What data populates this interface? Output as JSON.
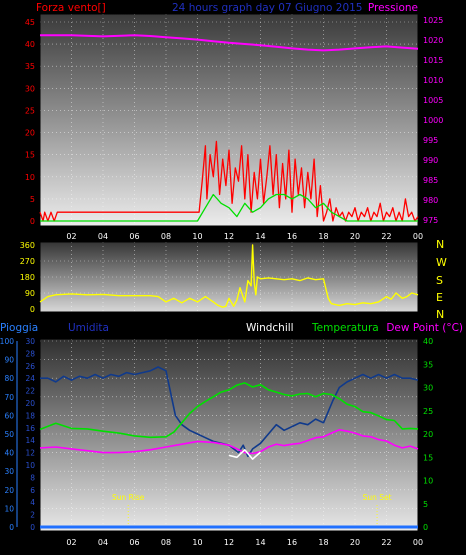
{
  "colors": {
    "red": "#ff0000",
    "green": "#00e000",
    "magenta": "#ff00ff",
    "yellow": "#ffff00",
    "blue": "#2070ff",
    "navy": "#2030a0",
    "white": "#ffffff",
    "darkblue_line": "#103a8c"
  },
  "chart_data": [
    {
      "type": "line",
      "title": "24 hours graph day  07 Giugno 2015",
      "left_label": "Forza vento[]",
      "right_label": "Pressione",
      "x_ticks": [
        "02",
        "04",
        "06",
        "08",
        "10",
        "12",
        "14",
        "16",
        "18",
        "20",
        "22",
        "00"
      ],
      "left_ticks": [
        0,
        5,
        10,
        15,
        20,
        25,
        30,
        35,
        40,
        45
      ],
      "right_ticks": [
        975,
        980,
        985,
        990,
        995,
        1000,
        1005,
        1010,
        1015,
        1020,
        1025
      ],
      "xlim": [
        0,
        24
      ],
      "ylim_left": [
        0,
        45
      ],
      "ylim_right": [
        973.5,
        1026.5
      ],
      "series": [
        {
          "axis": "right",
          "color": "magenta",
          "x": [
            0,
            2,
            4,
            6,
            7,
            8,
            9,
            10,
            11,
            12,
            13,
            14,
            15,
            16,
            17,
            18,
            19,
            20,
            21,
            22,
            23,
            24
          ],
          "y": [
            1021.2,
            1021.2,
            1020.9,
            1021.2,
            1021.0,
            1020.7,
            1020.4,
            1020.1,
            1019.7,
            1019.3,
            1019.0,
            1018.7,
            1018.3,
            1017.9,
            1017.6,
            1017.4,
            1017.6,
            1017.9,
            1018.2,
            1018.4,
            1018.1,
            1017.8
          ]
        },
        {
          "axis": "left",
          "color": "red",
          "x": [
            0,
            0.2,
            0.3,
            0.5,
            0.7,
            0.9,
            1.1,
            10.1,
            10.3,
            10.5,
            10.6,
            10.8,
            11.0,
            11.2,
            11.4,
            11.6,
            11.8,
            12.0,
            12.2,
            12.4,
            12.6,
            12.8,
            13.0,
            13.2,
            13.4,
            13.6,
            13.8,
            14.0,
            14.2,
            14.4,
            14.6,
            14.8,
            15.0,
            15.2,
            15.4,
            15.6,
            15.8,
            16.0,
            16.2,
            16.4,
            16.6,
            16.8,
            17.0,
            17.2,
            17.4,
            17.6,
            17.8,
            18.0,
            18.2,
            18.4,
            18.6,
            18.8,
            19.0,
            19.2,
            19.4,
            19.6,
            19.8,
            20.0,
            20.2,
            20.4,
            20.6,
            20.8,
            21.0,
            21.2,
            21.4,
            21.6,
            21.8,
            22.0,
            22.2,
            22.4,
            22.6,
            22.8,
            23.0,
            23.2,
            23.4,
            23.6,
            23.8,
            24.0
          ],
          "y": [
            2,
            0,
            2,
            0,
            2,
            0,
            2,
            2,
            9,
            17,
            5,
            15,
            10,
            18,
            6,
            14,
            8,
            16,
            4,
            12,
            9,
            17,
            5,
            15,
            2,
            11,
            5,
            14,
            4,
            10,
            17,
            6,
            15,
            3,
            13,
            5,
            16,
            2,
            14,
            6,
            12,
            3,
            11,
            5,
            14,
            1,
            8,
            0,
            2,
            5,
            0,
            3,
            1,
            2,
            0,
            2,
            1,
            3,
            0,
            2,
            1,
            3,
            0,
            2,
            1,
            4,
            0,
            2,
            1,
            3,
            0,
            2,
            0,
            5,
            1,
            2,
            0,
            1
          ]
        },
        {
          "axis": "left",
          "color": "green",
          "x": [
            0,
            10.0,
            10.5,
            11.0,
            11.5,
            12.0,
            12.5,
            13.0,
            13.5,
            14.0,
            14.5,
            15.0,
            15.5,
            16.0,
            16.5,
            17.0,
            17.5,
            18.0,
            18.5,
            19.0,
            19.5,
            20.0,
            24.0
          ],
          "y": [
            0,
            0,
            3,
            6,
            4,
            3,
            1,
            4,
            2,
            3,
            5,
            6,
            6,
            5,
            6,
            5,
            3,
            4,
            2,
            1,
            0,
            0,
            0
          ]
        }
      ]
    },
    {
      "type": "line",
      "left_ticks": [
        0,
        90,
        180,
        270,
        360
      ],
      "compass_labels": [
        "N",
        "W",
        "S",
        "E",
        "N"
      ],
      "xlim": [
        0,
        24
      ],
      "ylim": [
        0,
        360
      ],
      "series": [
        {
          "color": "yellow",
          "x": [
            0,
            0.5,
            1.0,
            2.0,
            3.0,
            4.0,
            5.0,
            6.0,
            7.0,
            7.5,
            8.0,
            8.5,
            9.0,
            9.5,
            10.0,
            10.5,
            11.0,
            11.3,
            11.6,
            11.8,
            12.0,
            12.3,
            12.5,
            12.7,
            13.0,
            13.2,
            13.4,
            13.5,
            13.6,
            13.7,
            13.8,
            14.0,
            14.5,
            15.0,
            15.5,
            16.0,
            16.5,
            17.0,
            17.5,
            18.0,
            18.3,
            18.5,
            19.0,
            19.5,
            20.0,
            20.5,
            21.0,
            21.5,
            22.0,
            22.3,
            22.6,
            23.0,
            23.3,
            23.6,
            24.0
          ],
          "y": [
            40,
            70,
            80,
            85,
            80,
            82,
            75,
            75,
            75,
            70,
            40,
            60,
            35,
            60,
            40,
            70,
            40,
            20,
            10,
            15,
            60,
            15,
            50,
            120,
            40,
            160,
            130,
            360,
            150,
            80,
            180,
            170,
            175,
            170,
            165,
            170,
            160,
            175,
            165,
            170,
            60,
            30,
            20,
            30,
            25,
            35,
            30,
            40,
            70,
            55,
            90,
            60,
            70,
            90,
            80
          ]
        }
      ]
    },
    {
      "type": "line",
      "left1_label": "Pioggia",
      "left2_label": "Umidita",
      "mid_label": "Windchill",
      "temp_label": "Temperatura",
      "right_label": "Dew Point (°C)",
      "left1_ticks": [
        0,
        10,
        20,
        30,
        40,
        50,
        60,
        70,
        80,
        90,
        100
      ],
      "left2_ticks": [
        0,
        2,
        4,
        6,
        8,
        10,
        12,
        14,
        16,
        18,
        20,
        22,
        24,
        26,
        28,
        30
      ],
      "right_ticks": [
        0,
        5,
        10,
        15,
        20,
        25,
        30,
        35,
        40
      ],
      "x_ticks": [
        "02",
        "04",
        "06",
        "08",
        "10",
        "12",
        "14",
        "16",
        "18",
        "20",
        "22",
        "00"
      ],
      "annotations": [
        {
          "label": "Sun Rise",
          "x": 5.6
        },
        {
          "label": "Sun Set",
          "x": 21.4
        }
      ],
      "xlim": [
        0,
        24
      ],
      "ylim_pct": [
        0,
        100
      ],
      "ylim_temp": [
        0,
        40
      ],
      "series": [
        {
          "name": "Umidita",
          "color": "darkblue_line",
          "axis": "pct",
          "x": [
            0,
            0.5,
            1.0,
            1.5,
            2.0,
            2.5,
            3.0,
            3.5,
            4.0,
            4.5,
            5.0,
            5.5,
            6.0,
            6.5,
            7.0,
            7.5,
            8.0,
            8.3,
            8.6,
            9.0,
            9.5,
            10.0,
            10.5,
            11.0,
            11.5,
            12.0,
            12.3,
            12.6,
            12.9,
            13.2,
            13.5,
            14.0,
            14.5,
            15.0,
            15.5,
            16.0,
            16.5,
            17.0,
            17.5,
            18.0,
            18.3,
            18.6,
            19.0,
            19.5,
            20.0,
            20.5,
            21.0,
            21.5,
            22.0,
            22.5,
            23.0,
            23.5,
            24.0
          ],
          "y": [
            80,
            80,
            78,
            81,
            79,
            81,
            80,
            82,
            80,
            82,
            81,
            83,
            82,
            83,
            84,
            86,
            84,
            72,
            60,
            55,
            52,
            50,
            48,
            46,
            45,
            44,
            42,
            40,
            44,
            38,
            42,
            45,
            50,
            55,
            52,
            54,
            56,
            55,
            58,
            56,
            62,
            68,
            75,
            78,
            80,
            82,
            80,
            82,
            80,
            82,
            80,
            80,
            79
          ]
        },
        {
          "name": "Temperatura",
          "color": "green",
          "axis": "temp",
          "x": [
            0,
            1,
            2,
            3,
            4,
            5,
            6,
            7,
            8,
            8.5,
            9,
            9.5,
            10,
            10.5,
            11,
            11.5,
            12,
            12.5,
            13,
            13.5,
            14,
            14.5,
            15,
            15.5,
            16,
            16.5,
            17,
            17.5,
            18,
            18.5,
            19,
            19.5,
            20,
            20.5,
            21,
            21.5,
            22,
            22.5,
            23,
            23.5,
            24
          ],
          "y": [
            21.0,
            22.3,
            21.2,
            21.1,
            20.6,
            20.2,
            19.6,
            19.3,
            19.4,
            20.4,
            22.4,
            24.4,
            25.9,
            27.0,
            28.0,
            29.0,
            29.5,
            30.5,
            31.0,
            30.1,
            30.6,
            29.5,
            29.0,
            28.5,
            28.2,
            28.6,
            28.7,
            28.0,
            28.7,
            28.5,
            27.6,
            26.4,
            25.9,
            24.8,
            24.6,
            23.9,
            23.1,
            22.9,
            21.1,
            21.2,
            21.1
          ]
        },
        {
          "name": "Dew Point",
          "color": "magenta",
          "axis": "temp",
          "x": [
            0,
            1,
            2,
            3,
            4,
            5,
            6,
            7,
            8,
            9,
            10,
            11,
            12,
            12.5,
            13,
            13.5,
            14,
            14.5,
            15,
            15.5,
            16,
            16.5,
            17,
            17.5,
            18,
            18.5,
            19,
            19.5,
            20,
            20.5,
            21,
            21.5,
            22,
            22.5,
            23,
            23.5,
            24
          ],
          "y": [
            17.0,
            17.2,
            16.8,
            16.4,
            16.0,
            16.0,
            16.2,
            16.6,
            17.2,
            17.8,
            18.4,
            18.2,
            17.6,
            16.8,
            16.0,
            15.8,
            16.2,
            17.2,
            17.8,
            17.5,
            17.8,
            18.0,
            18.6,
            19.2,
            19.4,
            20.2,
            20.9,
            20.6,
            20.2,
            19.6,
            19.4,
            18.8,
            18.5,
            17.6,
            17.0,
            17.4,
            16.8
          ]
        },
        {
          "name": "Windchill",
          "color": "white",
          "axis": "temp",
          "x": [
            12.0,
            12.5,
            13.0,
            13.5,
            14.0
          ],
          "y": [
            15.4,
            15.0,
            16.6,
            14.6,
            16.1
          ]
        },
        {
          "name": "Pioggia",
          "color": "blue",
          "axis": "pct",
          "x": [
            0,
            24
          ],
          "y": [
            0,
            0
          ]
        }
      ]
    }
  ]
}
